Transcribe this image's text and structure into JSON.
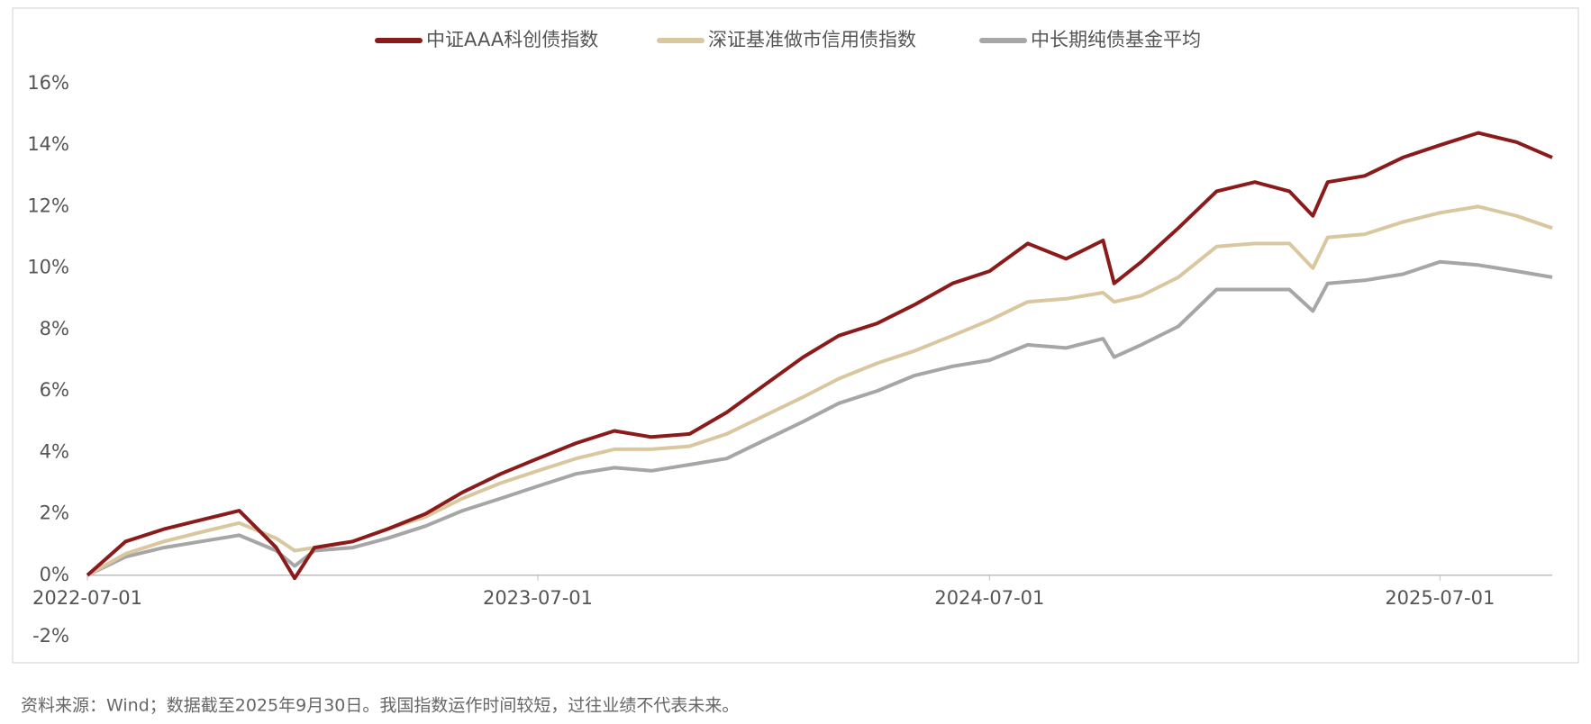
{
  "chart_data": {
    "type": "line",
    "x": [
      "2022-07-01",
      "2022-08-01",
      "2022-09-01",
      "2022-10-01",
      "2022-11-01",
      "2022-12-01",
      "2022-12-16",
      "2023-01-01",
      "2023-02-01",
      "2023-03-01",
      "2023-04-01",
      "2023-05-01",
      "2023-06-01",
      "2023-07-01",
      "2023-08-01",
      "2023-09-01",
      "2023-10-01",
      "2023-11-01",
      "2023-12-01",
      "2024-01-01",
      "2024-02-01",
      "2024-03-01",
      "2024-04-01",
      "2024-05-01",
      "2024-06-01",
      "2024-07-01",
      "2024-08-01",
      "2024-09-01",
      "2024-10-01",
      "2024-10-10",
      "2024-11-01",
      "2024-12-01",
      "2025-01-01",
      "2025-02-01",
      "2025-03-01",
      "2025-03-20",
      "2025-04-01",
      "2025-05-01",
      "2025-06-01",
      "2025-07-01",
      "2025-08-01",
      "2025-09-01",
      "2025-09-30"
    ],
    "series": [
      {
        "name": "中证AAA科创债指数",
        "color": "#8b1a1a",
        "values": [
          0,
          1.1,
          1.5,
          1.8,
          2.1,
          0.9,
          -0.1,
          0.9,
          1.1,
          1.5,
          2.0,
          2.7,
          3.3,
          3.8,
          4.3,
          4.7,
          4.5,
          4.6,
          5.3,
          6.2,
          7.1,
          7.8,
          8.2,
          8.8,
          9.5,
          9.9,
          10.8,
          10.3,
          10.9,
          9.5,
          10.2,
          11.3,
          12.5,
          12.8,
          12.5,
          11.7,
          12.8,
          13.0,
          13.6,
          14.0,
          14.4,
          14.1,
          13.6
        ]
      },
      {
        "name": "深证基准做市信用债指数",
        "color": "#d9c7a0",
        "values": [
          0,
          0.7,
          1.1,
          1.4,
          1.7,
          1.2,
          0.8,
          0.9,
          1.1,
          1.5,
          1.9,
          2.5,
          3.0,
          3.4,
          3.8,
          4.1,
          4.1,
          4.2,
          4.6,
          5.2,
          5.8,
          6.4,
          6.9,
          7.3,
          7.8,
          8.3,
          8.9,
          9.0,
          9.2,
          8.9,
          9.1,
          9.7,
          10.7,
          10.8,
          10.8,
          10.0,
          11.0,
          11.1,
          11.5,
          11.8,
          12.0,
          11.7,
          11.3
        ]
      },
      {
        "name": "中长期纯债基金平均",
        "color": "#a6a6a6",
        "values": [
          0,
          0.6,
          0.9,
          1.1,
          1.3,
          0.8,
          0.3,
          0.8,
          0.9,
          1.2,
          1.6,
          2.1,
          2.5,
          2.9,
          3.3,
          3.5,
          3.4,
          3.6,
          3.8,
          4.4,
          5.0,
          5.6,
          6.0,
          6.5,
          6.8,
          7.0,
          7.5,
          7.4,
          7.7,
          7.1,
          7.5,
          8.1,
          9.3,
          9.3,
          9.3,
          8.6,
          9.5,
          9.6,
          9.8,
          10.2,
          10.1,
          9.9,
          9.7
        ]
      }
    ],
    "xlim": [
      "2022-07-01",
      "2025-09-30"
    ],
    "xticks": [
      "2022-07-01",
      "2023-07-01",
      "2024-07-01",
      "2025-07-01"
    ],
    "ylim": [
      -2,
      16
    ],
    "yticks": [
      {
        "value": -2,
        "label": "-2%"
      },
      {
        "value": 0,
        "label": "0%"
      },
      {
        "value": 2,
        "label": "2%"
      },
      {
        "value": 4,
        "label": "4%"
      },
      {
        "value": 6,
        "label": "6%"
      },
      {
        "value": 8,
        "label": "8%"
      },
      {
        "value": 10,
        "label": "10%"
      },
      {
        "value": 12,
        "label": "12%"
      },
      {
        "value": 14,
        "label": "14%"
      },
      {
        "value": 16,
        "label": "16%"
      }
    ],
    "grid": false,
    "legend": "top",
    "footnote": "资料来源：Wind；数据截至2025年9月30日。我国指数运作时间较短，过往业绩不代表未来。"
  }
}
